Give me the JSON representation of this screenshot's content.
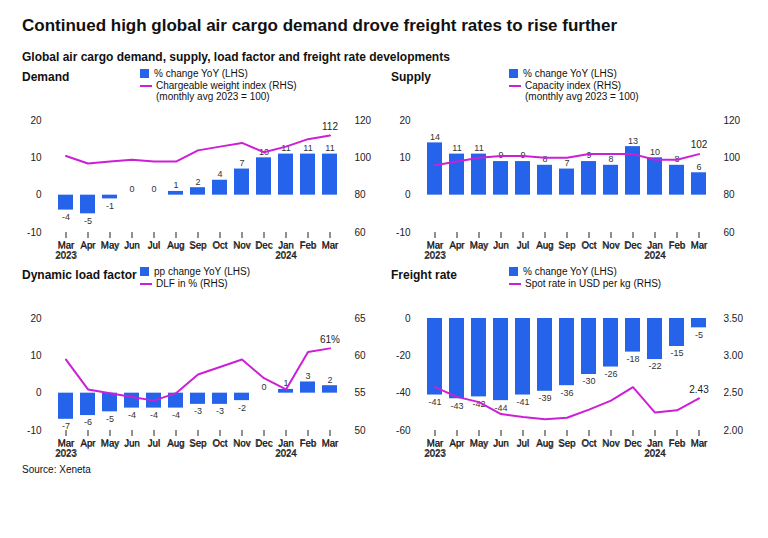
{
  "title": "Continued high global air cargo demand drove freight rates to rise further",
  "subtitle": "Global air cargo demand, supply, load factor and freight rate developments",
  "source": "Source: Xeneta",
  "chart_data": [
    {
      "type": "bar",
      "title": "Demand",
      "categories": [
        "Mar 2023",
        "Apr",
        "May",
        "Jun",
        "Jul",
        "Aug",
        "Sep",
        "Oct",
        "Nov",
        "Dec",
        "Jan 2024",
        "Feb",
        "Mar"
      ],
      "series": [
        {
          "name": "% change YoY (LHS)",
          "type": "bar",
          "color": "#2563eb",
          "data_labels": true,
          "values": [
            -4,
            -5,
            -1,
            0,
            0,
            1,
            2,
            4,
            7,
            10,
            11,
            11,
            11
          ]
        },
        {
          "name": "Chargeable weight index (RHS)\n(monthly avg 2023 = 100)",
          "type": "line",
          "axis": "y2",
          "color": "#cc1fd6",
          "values": [
            101,
            97,
            98,
            99,
            98,
            98,
            104,
            106,
            108,
            103,
            106,
            110,
            112
          ],
          "value_labels": [
            null,
            null,
            null,
            null,
            null,
            null,
            null,
            null,
            null,
            null,
            null,
            null,
            "112"
          ]
        }
      ],
      "ylim": [
        -10,
        20
      ],
      "yticks": [
        -10,
        0,
        10,
        20
      ],
      "y2lim": [
        60,
        120
      ],
      "y2ticks": [
        60,
        80,
        100,
        120
      ],
      "grid": false
    },
    {
      "type": "bar",
      "title": "Supply",
      "categories": [
        "Mar 2023",
        "Apr",
        "May",
        "Jun",
        "Jul",
        "Aug",
        "Sep",
        "Oct",
        "Nov",
        "Dec",
        "Jan 2024",
        "Feb",
        "Mar"
      ],
      "series": [
        {
          "name": "% change YoY (LHS)",
          "type": "bar",
          "color": "#2563eb",
          "data_labels": true,
          "values": [
            14,
            11,
            11,
            9,
            9,
            8,
            7,
            9,
            8,
            13,
            10,
            8,
            6
          ]
        },
        {
          "name": "Capacity index (RHS)\n(monthly avg 2023 = 100)",
          "type": "line",
          "axis": "y2",
          "color": "#cc1fd6",
          "values": [
            96,
            98,
            100,
            101,
            101,
            100,
            100,
            102,
            102,
            102,
            99,
            99,
            102
          ],
          "value_labels": [
            null,
            null,
            null,
            null,
            null,
            null,
            null,
            null,
            null,
            null,
            null,
            null,
            "102"
          ]
        }
      ],
      "ylim": [
        -10,
        20
      ],
      "yticks": [
        -10,
        0,
        10,
        20
      ],
      "y2lim": [
        60,
        120
      ],
      "y2ticks": [
        60,
        80,
        100,
        120
      ],
      "grid": false
    },
    {
      "type": "bar",
      "title": "Dynamic load factor",
      "categories": [
        "Mar 2023",
        "Apr",
        "May",
        "Jun",
        "Jul",
        "Aug",
        "Sep",
        "Oct",
        "Nov",
        "Dec",
        "Jan 2024",
        "Feb",
        "Mar"
      ],
      "series": [
        {
          "name": "pp change YoY (LHS)",
          "type": "bar",
          "color": "#2563eb",
          "data_labels": true,
          "values": [
            -7,
            -6,
            -5,
            -4,
            -4,
            -4,
            -3,
            -3,
            -2,
            0,
            1,
            3,
            2
          ]
        },
        {
          "name": "DLF in % (RHS)",
          "type": "line",
          "axis": "y2",
          "color": "#cc1fd6",
          "values": [
            59.5,
            55.5,
            55,
            54.5,
            54,
            55,
            57.5,
            58.5,
            59.5,
            57,
            55.5,
            60.5,
            61
          ],
          "value_labels": [
            null,
            null,
            null,
            null,
            null,
            null,
            null,
            null,
            null,
            null,
            null,
            null,
            "61%"
          ]
        }
      ],
      "ylim": [
        -10,
        20
      ],
      "yticks": [
        -10,
        0,
        10,
        20
      ],
      "y2lim": [
        50,
        65
      ],
      "y2ticks": [
        50,
        55,
        60,
        65
      ],
      "grid": false
    },
    {
      "type": "bar",
      "title": "Freight rate",
      "categories": [
        "Mar 2023",
        "Apr",
        "May",
        "Jun",
        "Jul",
        "Aug",
        "Sep",
        "Oct",
        "Nov",
        "Dec",
        "Jan 2024",
        "Feb",
        "Mar"
      ],
      "series": [
        {
          "name": "% change YoY (LHS)",
          "type": "bar",
          "color": "#2563eb",
          "data_labels": true,
          "values": [
            -41,
            -43,
            -42,
            -44,
            -41,
            -39,
            -36,
            -30,
            -26,
            -18,
            -22,
            -15,
            -5
          ]
        },
        {
          "name": "Spot rate in USD per kg (RHS)",
          "type": "line",
          "axis": "y2",
          "color": "#cc1fd6",
          "values": [
            2.58,
            2.45,
            2.38,
            2.22,
            2.18,
            2.15,
            2.17,
            2.28,
            2.4,
            2.58,
            2.24,
            2.27,
            2.43
          ],
          "value_labels": [
            null,
            null,
            null,
            null,
            null,
            null,
            null,
            null,
            null,
            null,
            null,
            null,
            "2.43"
          ]
        }
      ],
      "ylim": [
        -60,
        0
      ],
      "yticks": [
        -60,
        -40,
        -20,
        0
      ],
      "y2lim": [
        2,
        3.5
      ],
      "y2ticks": [
        {
          "value": 2,
          "label": "2.00"
        },
        {
          "value": 2.5,
          "label": "2.50"
        },
        {
          "value": 3,
          "label": "3.00"
        },
        {
          "value": 3.5,
          "label": "3.50"
        }
      ],
      "grid": false
    }
  ]
}
